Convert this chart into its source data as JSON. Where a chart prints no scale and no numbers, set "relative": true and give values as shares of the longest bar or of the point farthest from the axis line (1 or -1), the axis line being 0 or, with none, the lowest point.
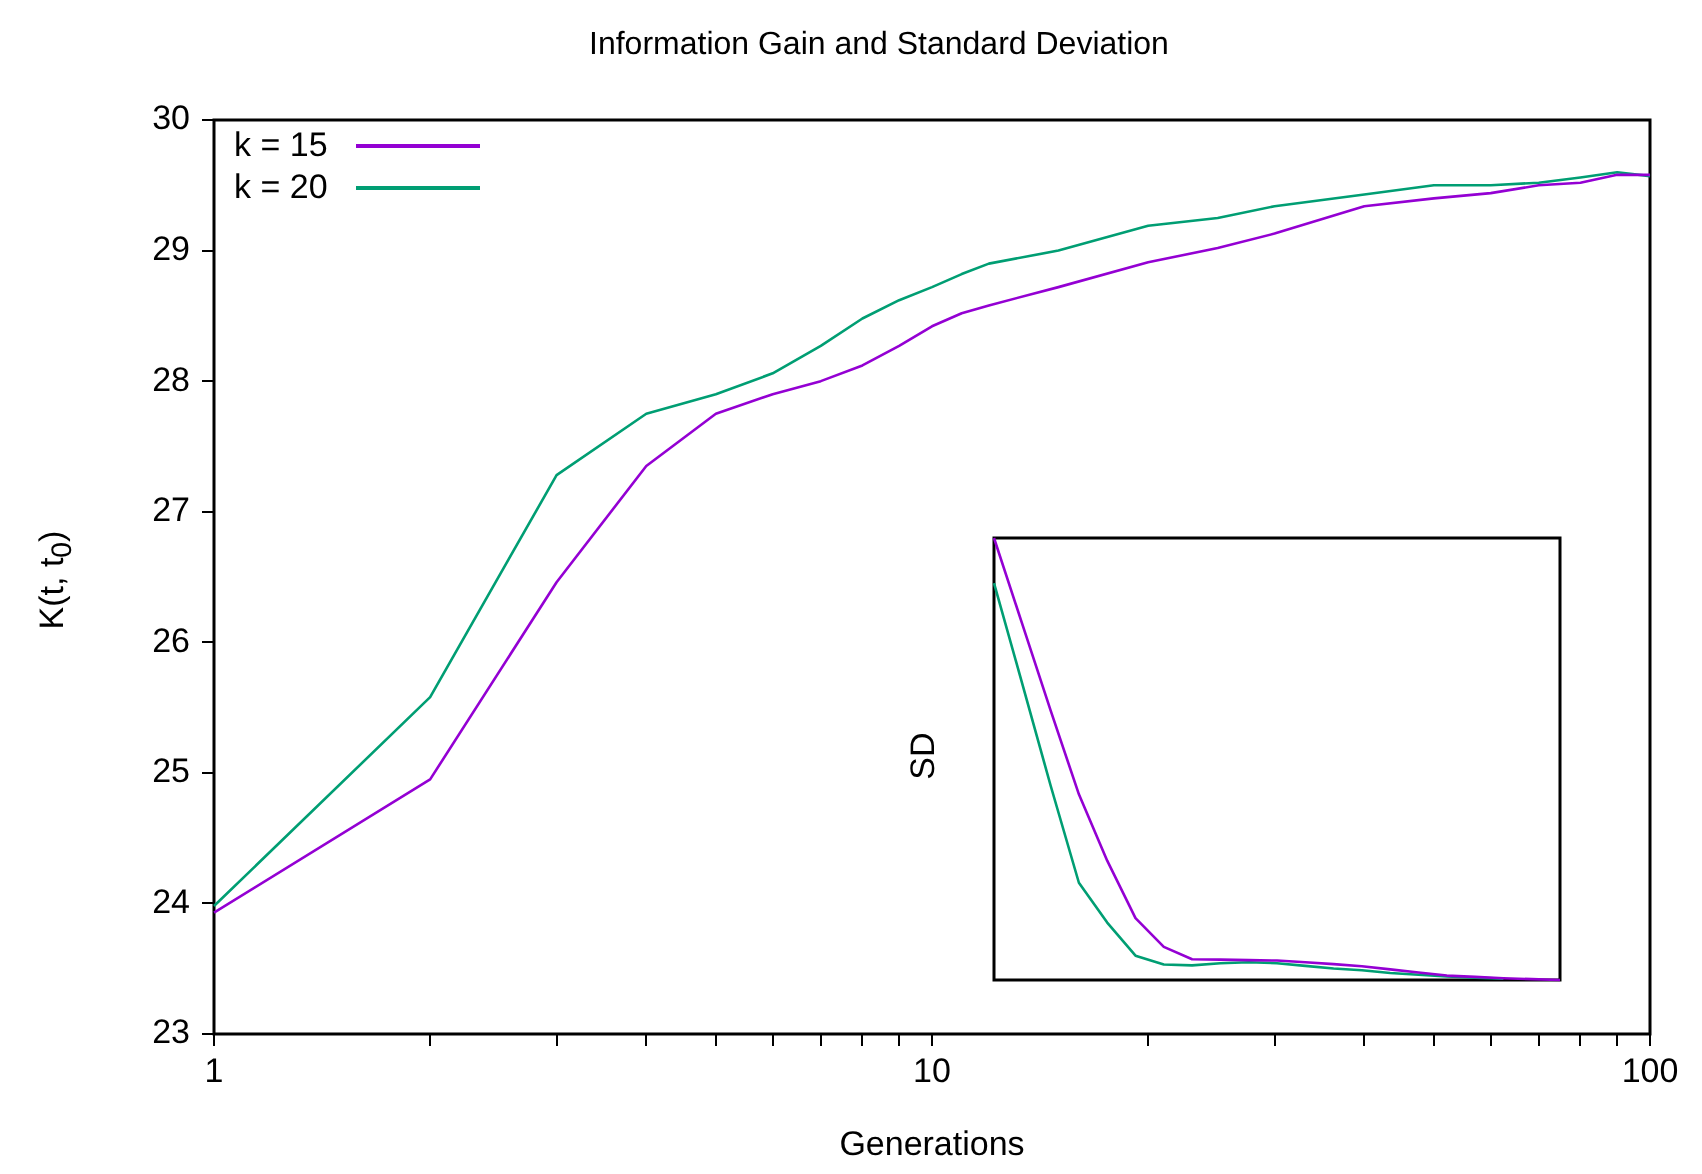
{
  "chart_data": [
    {
      "type": "line",
      "title": "Information Gain and Standard Deviation",
      "xlabel": "Generations",
      "ylabel": "K(t, t$_{0}$)",
      "log": "x",
      "xlim": [
        1,
        100
      ],
      "xticks": [
        1,
        {
          "value": 2,
          "label": null
        },
        {
          "value": 3,
          "label": null
        },
        {
          "value": 4,
          "label": null
        },
        {
          "value": 5,
          "label": null
        },
        {
          "value": 6,
          "label": null
        },
        {
          "value": 7,
          "label": null
        },
        {
          "value": 8,
          "label": null
        },
        {
          "value": 9,
          "label": null
        },
        10,
        {
          "value": 20,
          "label": null
        },
        {
          "value": 30,
          "label": null
        },
        {
          "value": 40,
          "label": null
        },
        {
          "value": 50,
          "label": null
        },
        {
          "value": 60,
          "label": null
        },
        {
          "value": 70,
          "label": null
        },
        {
          "value": 80,
          "label": null
        },
        {
          "value": 90,
          "label": null
        },
        100
      ],
      "ylim": [
        23,
        30
      ],
      "yticks": [
        23,
        24,
        25,
        26,
        27,
        28,
        29,
        30
      ],
      "grid": false,
      "legend": "top left",
      "x": [
        1,
        2,
        3,
        4,
        5,
        6,
        7,
        8,
        9,
        10,
        11,
        12,
        15,
        20,
        25,
        30,
        40,
        50,
        60,
        70,
        80,
        90,
        100
      ],
      "series": [
        {
          "name": "k = 15",
          "color": "#9400d3",
          "values": [
            23.93,
            24.95,
            26.46,
            27.35,
            27.75,
            27.9,
            28.0,
            28.12,
            28.27,
            28.42,
            28.52,
            28.58,
            28.72,
            28.91,
            29.02,
            29.13,
            29.34,
            29.4,
            29.44,
            29.5,
            29.52,
            29.58,
            29.58
          ]
        },
        {
          "name": "k = 20",
          "color": "#009e73",
          "values": [
            23.98,
            25.58,
            27.28,
            27.75,
            27.9,
            28.06,
            28.27,
            28.48,
            28.62,
            28.72,
            28.82,
            28.9,
            29.0,
            29.19,
            29.25,
            29.34,
            29.43,
            29.5,
            29.5,
            29.52,
            29.56,
            29.6,
            29.57
          ]
        }
      ]
    },
    {
      "type": "line",
      "ylabel": "SD",
      "relative": true,
      "categories": [
        null,
        null,
        null,
        null,
        null,
        null,
        null,
        null,
        null,
        null,
        null,
        null,
        null,
        null,
        null,
        null,
        null,
        null,
        null,
        null,
        null
      ],
      "series": [
        {
          "color": "#9400d3",
          "values": [
            1,
            0.805,
            0.61,
            0.42,
            0.27,
            0.14,
            0.075,
            0.047,
            0.046,
            0.045,
            0.044,
            0.04,
            0.036,
            0.031,
            0.024,
            0.017,
            0.01,
            0.007,
            0.004,
            0.002,
            0
          ]
        },
        {
          "color": "#009e73",
          "values": [
            0.898,
            0.67,
            0.44,
            0.22,
            0.13,
            0.055,
            0.035,
            0.033,
            0.038,
            0.04,
            0.038,
            0.032,
            0.026,
            0.022,
            0.016,
            0.012,
            0.008,
            0.005,
            0.003,
            null,
            null
          ]
        }
      ]
    }
  ]
}
